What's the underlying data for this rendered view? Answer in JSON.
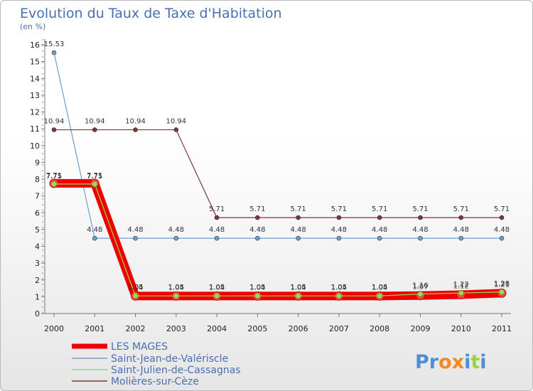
{
  "chart_data": {
    "type": "line",
    "title": "Evolution du Taux de Taxe d'Habitation",
    "subtitle": "(en %)",
    "xlabel": "",
    "ylabel": "",
    "x": [
      "2000",
      "2001",
      "2002",
      "2003",
      "2004",
      "2005",
      "2006",
      "2007",
      "2008",
      "2009",
      "2010",
      "2011"
    ],
    "ylim": [
      0,
      16
    ],
    "yticks": [
      "0",
      "1",
      "2",
      "3",
      "4",
      "5",
      "6",
      "7",
      "8",
      "9",
      "10",
      "11",
      "12",
      "13",
      "14",
      "15",
      "16"
    ],
    "grid": false,
    "legend_position": "bottom-left",
    "series": [
      {
        "name": "LES MAGES",
        "color": "#ee0000",
        "values": [
          7.75,
          7.75,
          1.04,
          1.04,
          1.04,
          1.04,
          1.04,
          1.04,
          1.04,
          1.07,
          1.12,
          1.21
        ],
        "labels": [
          "7.75",
          "7.75",
          "1.04",
          "1.04",
          "1.04",
          "1.04",
          "1.04",
          "1.04",
          "1.04",
          "1.07",
          "1.12",
          "1.21"
        ]
      },
      {
        "name": "Saint-Jean-de-Valériscle",
        "color": "#6a9fd0",
        "values": [
          15.53,
          4.48,
          4.48,
          4.48,
          4.48,
          4.48,
          4.48,
          4.48,
          4.48,
          4.48,
          4.48,
          4.48
        ],
        "labels": [
          "15.53",
          "4.48",
          "4.48",
          "4.48",
          "4.48",
          "4.48",
          "4.48",
          "4.48",
          "4.48",
          "4.48",
          "4.48",
          "4.48"
        ]
      },
      {
        "name": "Saint-Julien-de-Cassagnas",
        "color": "#99dd55",
        "values": [
          7.71,
          7.71,
          1.05,
          1.05,
          1.05,
          1.05,
          1.05,
          1.05,
          1.05,
          1.16,
          1.22,
          1.28
        ],
        "labels": [
          "7.71",
          "7.71",
          "1.05",
          "1.05",
          "1.05",
          "1.05",
          "1.05",
          "1.05",
          "1.05",
          "1.16",
          "1.22",
          "1.28"
        ]
      },
      {
        "name": "Molières-sur-Cèze",
        "color": "#7a3838",
        "values": [
          10.94,
          10.94,
          10.94,
          10.94,
          5.71,
          5.71,
          5.71,
          5.71,
          5.71,
          5.71,
          5.71,
          5.71
        ],
        "labels": [
          "10.94",
          "10.94",
          "10.94",
          "10.94",
          "5.71",
          "5.71",
          "5.71",
          "5.71",
          "5.71",
          "5.71",
          "5.71",
          "5.71"
        ]
      }
    ]
  },
  "branding": {
    "logo_text": "Proxiti",
    "letters": [
      "P",
      "r",
      "o",
      "x",
      "i",
      "t",
      "i"
    ],
    "colors": [
      "#4d8fd6",
      "#4d8fd6",
      "#f08a24",
      "#f08a24",
      "#4d8fd6",
      "#9bd33f",
      "#4d8fd6"
    ]
  }
}
